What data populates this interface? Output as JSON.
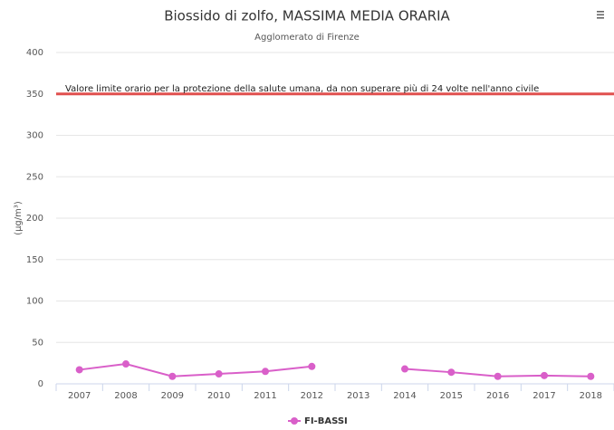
{
  "chart_data": {
    "type": "line",
    "title": "Biossido di zolfo, MASSIMA MEDIA ORARIA",
    "subtitle": "Agglomerato di Firenze",
    "y_label": "(µg/m³)",
    "categories": [
      "2007",
      "2008",
      "2009",
      "2010",
      "2011",
      "2012",
      "2013",
      "2014",
      "2015",
      "2016",
      "2017",
      "2018"
    ],
    "series": [
      {
        "name": "FI-BASSI",
        "color": "#d95fc9",
        "values": [
          17,
          24,
          9,
          12,
          15,
          21,
          null,
          18,
          14,
          9,
          10,
          9
        ]
      }
    ],
    "ylim": [
      0,
      400
    ],
    "yticks": [
      0,
      50,
      100,
      150,
      200,
      250,
      300,
      350,
      400
    ],
    "grid": true,
    "plot_lines": [
      {
        "value": 350,
        "color": "#e0504f",
        "label": "Valore limite orario per la protezione della salute umana, da non superare più di 24 volte nell'anno civile"
      }
    ],
    "legend": "bottom"
  }
}
